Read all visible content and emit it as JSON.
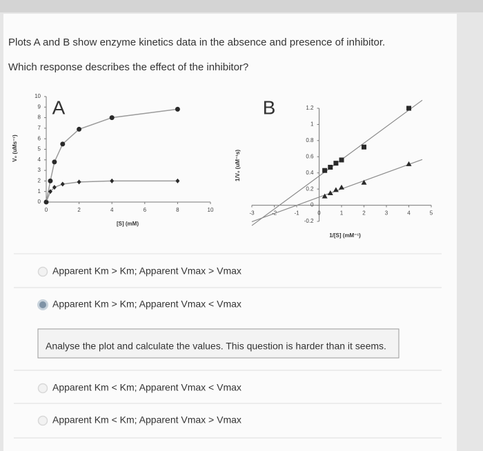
{
  "question": [
    "Plots A and B show enzyme kinetics data in the absence and presence of inhibitor.",
    "Which response describes the effect of the inhibitor?"
  ],
  "chart_data": [
    {
      "type": "line",
      "panel": "A",
      "x_label": "[S] (mM)",
      "y_label": "V₀ (uMs⁻¹)",
      "x": [
        0,
        0.25,
        0.5,
        1,
        2,
        4,
        8
      ],
      "series": [
        {
          "marker": "circle",
          "color": "#2a2a2a",
          "values": [
            0,
            2,
            3.8,
            5.5,
            6.9,
            8,
            8.8
          ]
        },
        {
          "marker": "diamond",
          "color": "#2a2a2a",
          "values": [
            0,
            1,
            1.4,
            1.7,
            1.9,
            2,
            2
          ]
        }
      ],
      "xlim": [
        0,
        10
      ],
      "ylim": [
        0,
        10
      ],
      "xticks": [
        0,
        2,
        4,
        6,
        8,
        10
      ],
      "yticks": [
        0,
        1,
        2,
        3,
        4,
        5,
        6,
        7,
        8,
        9,
        10
      ]
    },
    {
      "type": "scatter",
      "panel": "B",
      "x_label": "1/[S] (mM⁻¹)",
      "y_label": "1/V₀ (uM⁻¹s)",
      "x": [
        0.25,
        0.5,
        0.75,
        1,
        2,
        4
      ],
      "series": [
        {
          "marker": "square",
          "color": "#2a2a2a",
          "values": [
            0.43,
            0.47,
            0.52,
            0.56,
            0.72,
            1.2
          ]
        },
        {
          "marker": "triangle",
          "color": "#2a2a2a",
          "values": [
            0.11,
            0.15,
            0.19,
            0.22,
            0.28,
            0.51
          ]
        }
      ],
      "trendline": true,
      "xlim": [
        -3,
        5
      ],
      "ylim": [
        -0.2,
        1.2
      ],
      "xticks": [
        -3,
        -2,
        -1,
        0,
        1,
        2,
        3,
        4,
        5
      ],
      "yticks": [
        -0.2,
        0,
        0.2,
        0.4,
        0.6,
        0.8,
        1,
        1.2
      ]
    }
  ],
  "options": [
    "Apparent Km > Km; Apparent Vmax > Vmax",
    "Apparent Km > Km; Apparent Vmax < Vmax",
    "Apparent Km < Km; Apparent Vmax < Vmax",
    "Apparent Km < Km; Apparent Vmax > Vmax"
  ],
  "selected": 1,
  "tooltip": "Analyse the plot and calculate the values. This question is harder than it seems."
}
